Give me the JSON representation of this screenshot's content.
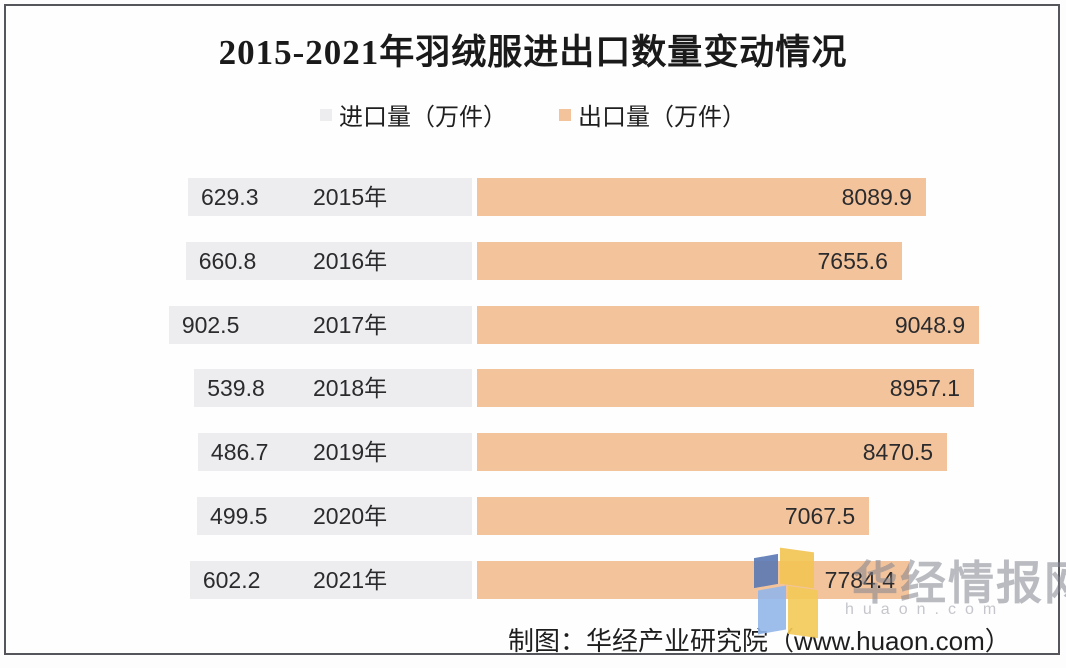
{
  "chart_data": {
    "type": "bar",
    "orientation": "horizontal-diverging",
    "title": "2015-2021年羽绒服进出口数量变动情况",
    "categories": [
      "2015年",
      "2016年",
      "2017年",
      "2018年",
      "2019年",
      "2020年",
      "2021年"
    ],
    "series": [
      {
        "name": "进口量（万件）",
        "values": [
          629.3,
          660.8,
          902.5,
          539.8,
          486.7,
          499.5,
          602.2
        ]
      },
      {
        "name": "出口量（万件）",
        "values": [
          8089.9,
          7655.6,
          9048.9,
          8957.1,
          8470.5,
          7067.5,
          7784.4
        ]
      }
    ],
    "legend_position": "top",
    "value_labels": "inside-bar-ends",
    "grid": false
  },
  "footer": {
    "attribution": "制图：华经产业研究院（www.huaon.com）"
  },
  "watermark": {
    "site_name": "华经情报网",
    "domain": "huaon.com",
    "logo": "huajing-logo"
  },
  "colors": {
    "import_bar": "#ededf0",
    "export_bar": "#f3c49c",
    "title_text": "#1a1a1a",
    "border": "#55555c",
    "watermark_text": "#82838e",
    "logo_dark_blue": "#5b79b4",
    "logo_light_blue": "#93b7ea",
    "logo_yellow": "#f2c452"
  }
}
